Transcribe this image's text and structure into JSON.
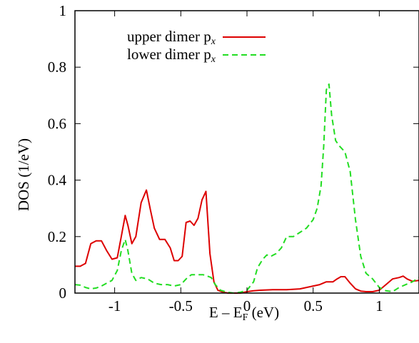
{
  "chart_data": {
    "type": "line",
    "xlabel": "E – E",
    "xlabel_sub": "F",
    "xlabel_unit": " (eV)",
    "ylabel": "DOS (1/eV)",
    "xlim": [
      -1.3,
      1.3
    ],
    "ylim": [
      0,
      1
    ],
    "xticks": [
      -1,
      -0.5,
      0,
      0.5,
      1
    ],
    "xtick_labels": [
      "-1",
      "-0.5",
      "0",
      "0.5",
      "1"
    ],
    "yticks": [
      0,
      0.2,
      0.4,
      0.6,
      0.8,
      1
    ],
    "ytick_labels": [
      "0",
      "0.2",
      "0.4",
      "0.6",
      "0.8",
      "1"
    ],
    "grid": false,
    "legend_position": "top-left",
    "series": [
      {
        "name": "upper dimer p",
        "name_sub": "x",
        "color": "#dd0000",
        "dash": "solid",
        "x": [
          -1.3,
          -1.26,
          -1.22,
          -1.18,
          -1.14,
          -1.1,
          -1.06,
          -1.02,
          -0.98,
          -0.95,
          -0.92,
          -0.9,
          -0.87,
          -0.84,
          -0.8,
          -0.76,
          -0.73,
          -0.7,
          -0.66,
          -0.62,
          -0.58,
          -0.55,
          -0.52,
          -0.49,
          -0.46,
          -0.43,
          -0.4,
          -0.37,
          -0.34,
          -0.31,
          -0.28,
          -0.25,
          -0.22,
          -0.18,
          -0.14,
          -0.1,
          -0.05,
          0,
          0.05,
          0.1,
          0.2,
          0.3,
          0.4,
          0.45,
          0.5,
          0.55,
          0.6,
          0.65,
          0.68,
          0.71,
          0.74,
          0.78,
          0.82,
          0.86,
          0.9,
          0.95,
          1.0,
          1.05,
          1.1,
          1.15,
          1.18,
          1.21,
          1.25,
          1.3
        ],
        "y": [
          0.095,
          0.095,
          0.105,
          0.175,
          0.185,
          0.185,
          0.15,
          0.12,
          0.125,
          0.2,
          0.275,
          0.24,
          0.175,
          0.2,
          0.32,
          0.365,
          0.295,
          0.23,
          0.19,
          0.19,
          0.16,
          0.115,
          0.115,
          0.13,
          0.25,
          0.255,
          0.24,
          0.265,
          0.33,
          0.36,
          0.14,
          0.04,
          0.01,
          0.003,
          0.0,
          0.0,
          0.0,
          0.005,
          0.008,
          0.01,
          0.012,
          0.012,
          0.015,
          0.02,
          0.025,
          0.03,
          0.04,
          0.04,
          0.05,
          0.058,
          0.058,
          0.035,
          0.015,
          0.007,
          0.005,
          0.005,
          0.01,
          0.03,
          0.05,
          0.055,
          0.06,
          0.05,
          0.042,
          0.045
        ]
      },
      {
        "name": "lower dimer p",
        "name_sub": "x",
        "color": "#22dd22",
        "dash": "dashed",
        "x": [
          -1.3,
          -1.26,
          -1.22,
          -1.18,
          -1.14,
          -1.1,
          -1.06,
          -1.02,
          -0.98,
          -0.95,
          -0.92,
          -0.9,
          -0.87,
          -0.84,
          -0.8,
          -0.75,
          -0.7,
          -0.65,
          -0.6,
          -0.55,
          -0.5,
          -0.45,
          -0.42,
          -0.38,
          -0.33,
          -0.3,
          -0.27,
          -0.24,
          -0.2,
          -0.15,
          -0.1,
          -0.05,
          0,
          0.05,
          0.08,
          0.12,
          0.15,
          0.18,
          0.22,
          0.26,
          0.3,
          0.35,
          0.4,
          0.45,
          0.5,
          0.53,
          0.56,
          0.58,
          0.6,
          0.62,
          0.64,
          0.67,
          0.7,
          0.74,
          0.78,
          0.82,
          0.86,
          0.9,
          0.95,
          1.0,
          1.05,
          1.1,
          1.15,
          1.2,
          1.25,
          1.3
        ],
        "y": [
          0.03,
          0.028,
          0.02,
          0.015,
          0.018,
          0.025,
          0.035,
          0.045,
          0.08,
          0.15,
          0.19,
          0.15,
          0.07,
          0.045,
          0.055,
          0.05,
          0.035,
          0.03,
          0.03,
          0.025,
          0.03,
          0.055,
          0.065,
          0.065,
          0.065,
          0.06,
          0.055,
          0.03,
          0.01,
          0.003,
          0.0,
          0.003,
          0.01,
          0.04,
          0.09,
          0.12,
          0.135,
          0.13,
          0.14,
          0.16,
          0.2,
          0.2,
          0.215,
          0.23,
          0.26,
          0.3,
          0.38,
          0.52,
          0.72,
          0.74,
          0.63,
          0.54,
          0.52,
          0.5,
          0.43,
          0.26,
          0.13,
          0.07,
          0.05,
          0.02,
          0.008,
          0.005,
          0.02,
          0.03,
          0.04,
          0.055
        ]
      }
    ]
  }
}
